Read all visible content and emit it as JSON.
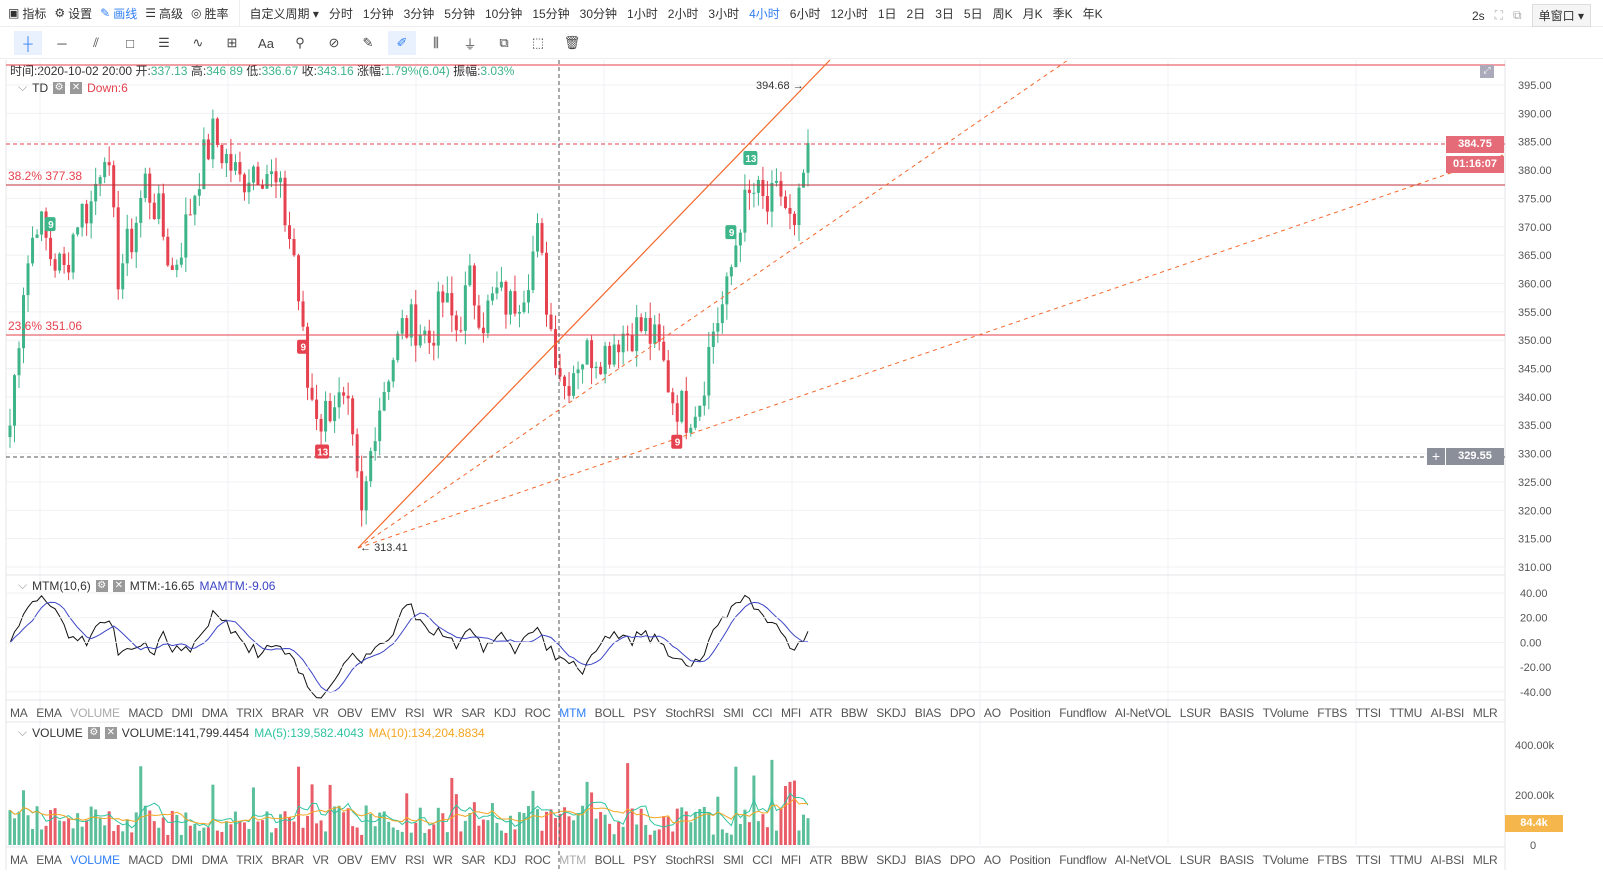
{
  "topbar": {
    "tools": [
      {
        "label": "指标",
        "icon": "chart-icon"
      },
      {
        "label": "设置",
        "icon": "gear-icon"
      },
      {
        "label": "画线",
        "icon": "pen-icon",
        "active": true
      },
      {
        "label": "高级",
        "icon": "layers-icon"
      },
      {
        "label": "胜率",
        "icon": "gauge-icon"
      }
    ],
    "custom_period": "自定义周期",
    "periods": [
      "分时",
      "1分钟",
      "3分钟",
      "5分钟",
      "10分钟",
      "15分钟",
      "30分钟",
      "1小时",
      "2小时",
      "3小时",
      "4小时",
      "6小时",
      "12小时",
      "1日",
      "2日",
      "3日",
      "5日",
      "周K",
      "月K",
      "季K",
      "年K"
    ],
    "active_period": "4小时",
    "refresh": "2s",
    "window_mode": "单窗口"
  },
  "drawbar": {
    "tools": [
      "crosshair-icon",
      "horizontal-line-icon",
      "trendline-icon",
      "rectangle-icon",
      "fibonacci-icon",
      "wave-icon",
      "measure-icon",
      "text-icon",
      "magnet-icon",
      "link-icon",
      "ruler-icon",
      "continuous-draw-icon",
      "ohlc-icon",
      "lock-icon",
      "copy-icon",
      "screenshot-icon",
      "trash-icon"
    ],
    "text_label": "Aa"
  },
  "info": {
    "time_label": "时间:",
    "time": "2020-10-02 20:00",
    "open_label": "开:",
    "open": "337.13",
    "high_label": "高:",
    "high": "346.89",
    "low_label": "低:",
    "low": "336.67",
    "close_label": "收:",
    "close": "343.16",
    "change_label": "涨幅:",
    "change": "1.79%(6.04)",
    "amp_label": "振幅:",
    "amp": "3.03%"
  },
  "main": {
    "indicator": "TD",
    "indicator_value": "Down:6",
    "price_ticks": [
      "395.00",
      "390.00",
      "385.00",
      "380.00",
      "375.00",
      "370.00",
      "365.00",
      "360.00",
      "355.00",
      "350.00",
      "345.00",
      "340.00",
      "335.00",
      "330.00",
      "325.00",
      "320.00",
      "315.00",
      "310.00"
    ],
    "last_price": "384.75",
    "countdown": "01:16:07",
    "crosshair_price": "329.55",
    "fib_382": "38.2% 377.38",
    "fib_236": "23.6% 351.06",
    "high_mark": "394.68",
    "low_mark": "313.41",
    "td_marks": [
      {
        "n": "9",
        "type": "up",
        "i": 9
      },
      {
        "n": "9",
        "type": "down",
        "i": 65
      },
      {
        "n": "13",
        "type": "down",
        "i": 69
      },
      {
        "n": "13",
        "type": "up",
        "i": 164
      },
      {
        "n": "9",
        "type": "up",
        "i": 160
      },
      {
        "n": "9",
        "type": "down",
        "i": 148
      }
    ],
    "colors": {
      "up": "#3eb489",
      "down": "#e5414e",
      "draw": "#f4672a"
    }
  },
  "chart_data": {
    "type": "candlestick",
    "closes": [
      335,
      360,
      372,
      365,
      362,
      372,
      374,
      385,
      362,
      368,
      378,
      372,
      362,
      370,
      380,
      386,
      382,
      378,
      381,
      380,
      375,
      365,
      342,
      336,
      340,
      336,
      318,
      336,
      345,
      352,
      353,
      350,
      357,
      352,
      360,
      354,
      358,
      356,
      360,
      368,
      352,
      342,
      347,
      348,
      348,
      351,
      352,
      352,
      348,
      340,
      337,
      340,
      352,
      358,
      372,
      376,
      373,
      376,
      368,
      384.75
    ],
    "ylim": [
      310,
      395
    ]
  },
  "mtm": {
    "name": "MTM(10,6)",
    "mtm": "MTM:-16.65",
    "mamtm": "MAMTM:-9.06",
    "ticks": [
      "40.00",
      "20.00",
      "0.00",
      "-20.00",
      "-40.00"
    ]
  },
  "volume": {
    "name": "VOLUME",
    "value": "VOLUME:141,799.4454",
    "ma5": "MA(5):139,582.4043",
    "ma10": "MA(10):134,204.8834",
    "ticks": [
      "400.00k",
      "200.00k",
      "0"
    ],
    "last": "84.4k"
  },
  "indicators": [
    "MA",
    "EMA",
    "VOLUME",
    "MACD",
    "DMI",
    "DMA",
    "TRIX",
    "BRAR",
    "VR",
    "OBV",
    "EMV",
    "RSI",
    "WR",
    "SAR",
    "KDJ",
    "ROC",
    "MTM",
    "BOLL",
    "PSY",
    "StochRSI",
    "SMI",
    "CCI",
    "MFI",
    "ATR",
    "BBW",
    "SKDJ",
    "BIAS",
    "DPO",
    "AO",
    "Position",
    "Fundflow",
    "AI-NetVOL",
    "LSUR",
    "BASIS",
    "TVolume",
    "FTBS",
    "TTSI",
    "TTMU",
    "AI-BSI",
    "MLR"
  ]
}
